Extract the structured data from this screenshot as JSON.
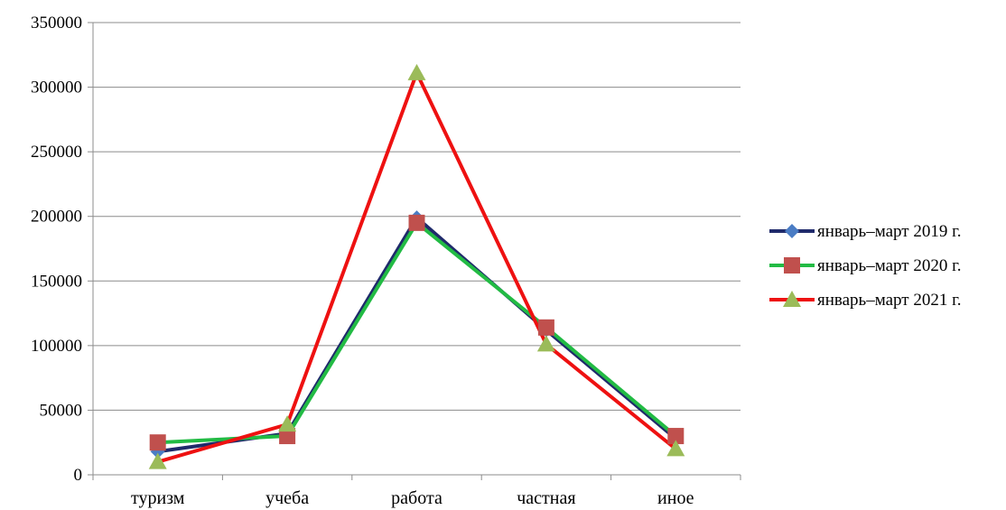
{
  "chart_data": {
    "type": "line",
    "categories": [
      "туризм",
      "учеба",
      "работа",
      "частная",
      "иное"
    ],
    "ylim": [
      0,
      350000
    ],
    "yticks": [
      0,
      50000,
      100000,
      150000,
      200000,
      250000,
      300000,
      350000
    ],
    "ytick_labels": [
      "0",
      "50000",
      "100000",
      "150000",
      "200000",
      "250000",
      "300000",
      "350000"
    ],
    "grid": true,
    "legend_position": "right",
    "series": [
      {
        "name": "январь–март 2019 г.",
        "values": [
          18000,
          32000,
          199000,
          112000,
          28000
        ],
        "color": "#1f2a6b",
        "marker": "diamond",
        "marker_color": "#4a7cc4"
      },
      {
        "name": "январь–март 2020 г.",
        "values": [
          25000,
          30000,
          195000,
          114000,
          30000
        ],
        "color": "#22bb44",
        "marker": "square",
        "marker_color": "#c0504d"
      },
      {
        "name": "январь–март 2021 г.",
        "values": [
          10000,
          39000,
          311000,
          101000,
          20000
        ],
        "color": "#ee1111",
        "marker": "triangle",
        "marker_color": "#9bbb59"
      }
    ]
  }
}
